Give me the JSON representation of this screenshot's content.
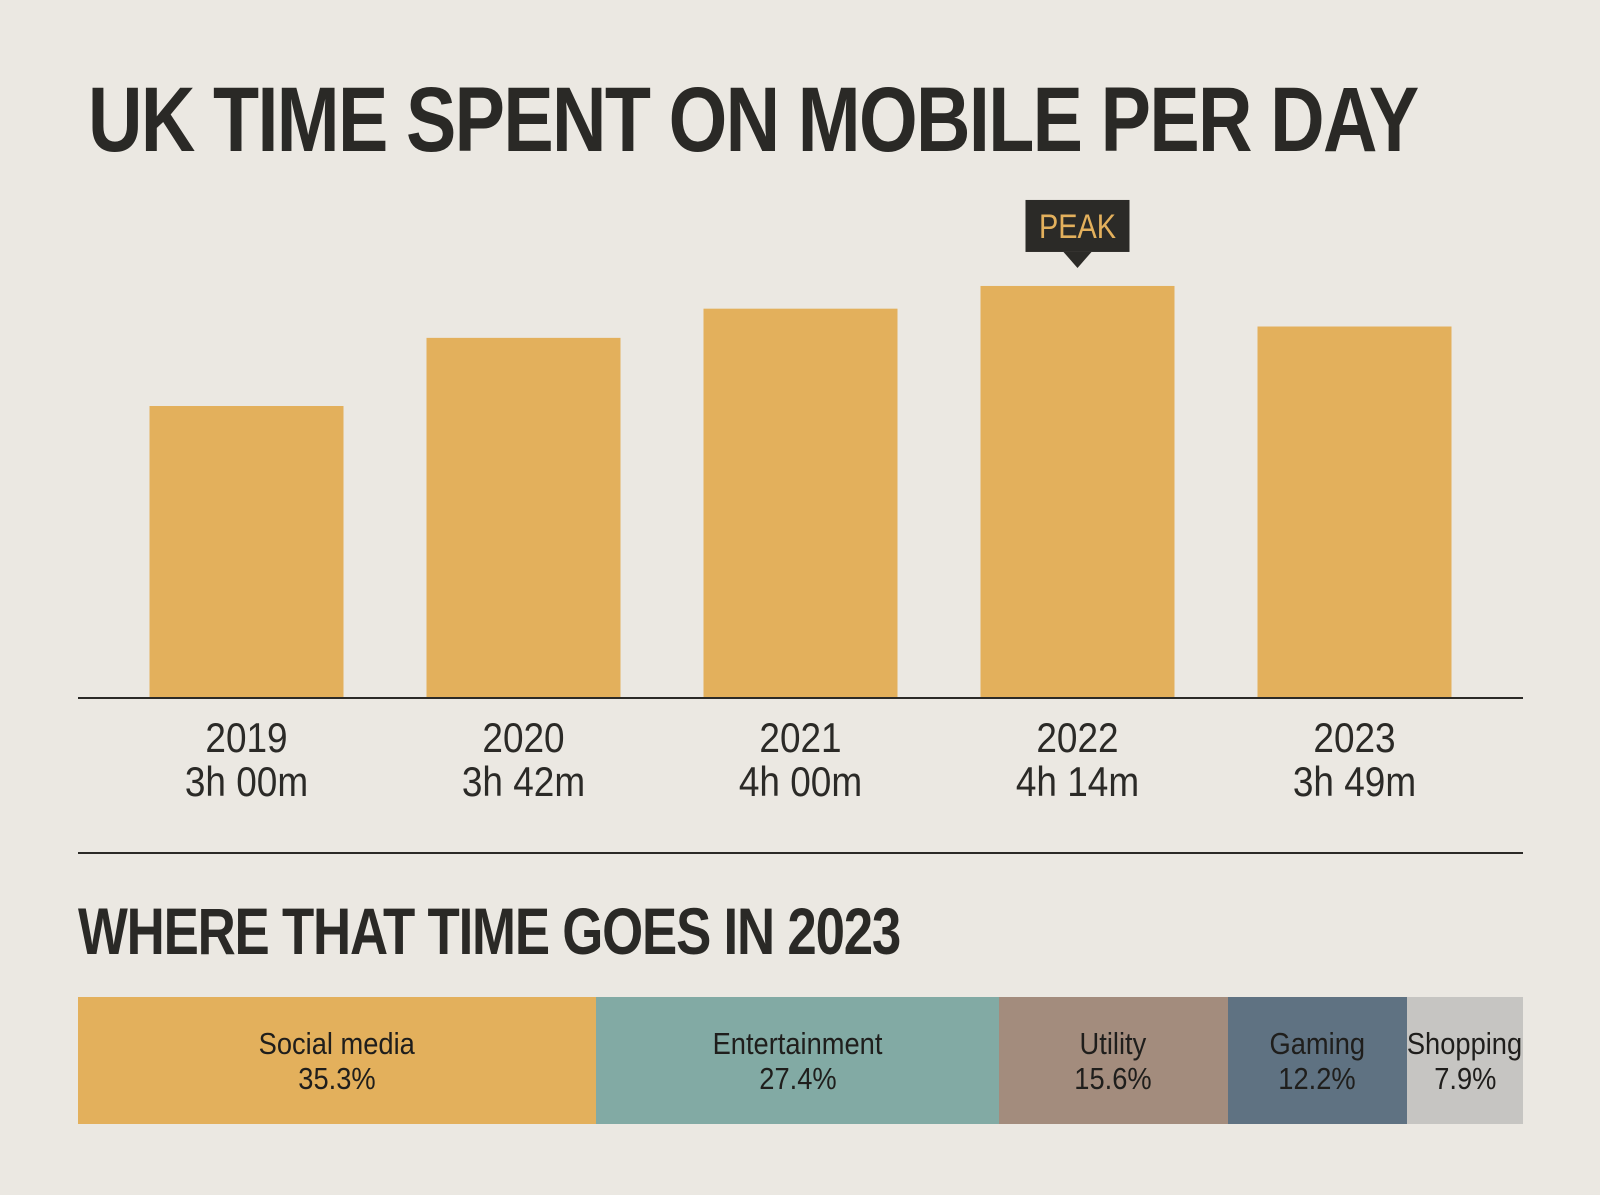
{
  "chart_data": [
    {
      "type": "bar",
      "title": "UK TIME SPENT ON MOBILE PER DAY",
      "categories": [
        "2019",
        "2020",
        "2021",
        "2022",
        "2023"
      ],
      "values_minutes": [
        180,
        222,
        240,
        254,
        229
      ],
      "data_labels": [
        "3h 00m",
        "3h 42m",
        "4h 00m",
        "4h 14m",
        "3h 49m"
      ],
      "annotation": {
        "category": "2022",
        "text": "PEAK"
      },
      "ylim": [
        0,
        270
      ],
      "grid": false,
      "colors": {
        "bar": "#e3b05c",
        "annotation_bg": "#2b2a27",
        "annotation_text": "#e3b05c"
      }
    },
    {
      "type": "bar",
      "stacked": true,
      "title": "WHERE THAT TIME GOES IN 2023",
      "segments": [
        {
          "name": "Social media",
          "value": 35.3,
          "label": "35.3%",
          "color": "#e3b05c"
        },
        {
          "name": "Entertainment",
          "value": 27.4,
          "label": "27.4%",
          "color": "#82aaa4"
        },
        {
          "name": "Utility",
          "value": 15.6,
          "label": "15.6%",
          "color": "#a38c7d"
        },
        {
          "name": "Gaming",
          "value": 12.2,
          "label": "12.2%",
          "color": "#5f7282"
        },
        {
          "name": "Shopping",
          "value": 7.9,
          "label": "7.9%",
          "color": "#c6c5c2"
        }
      ]
    }
  ]
}
